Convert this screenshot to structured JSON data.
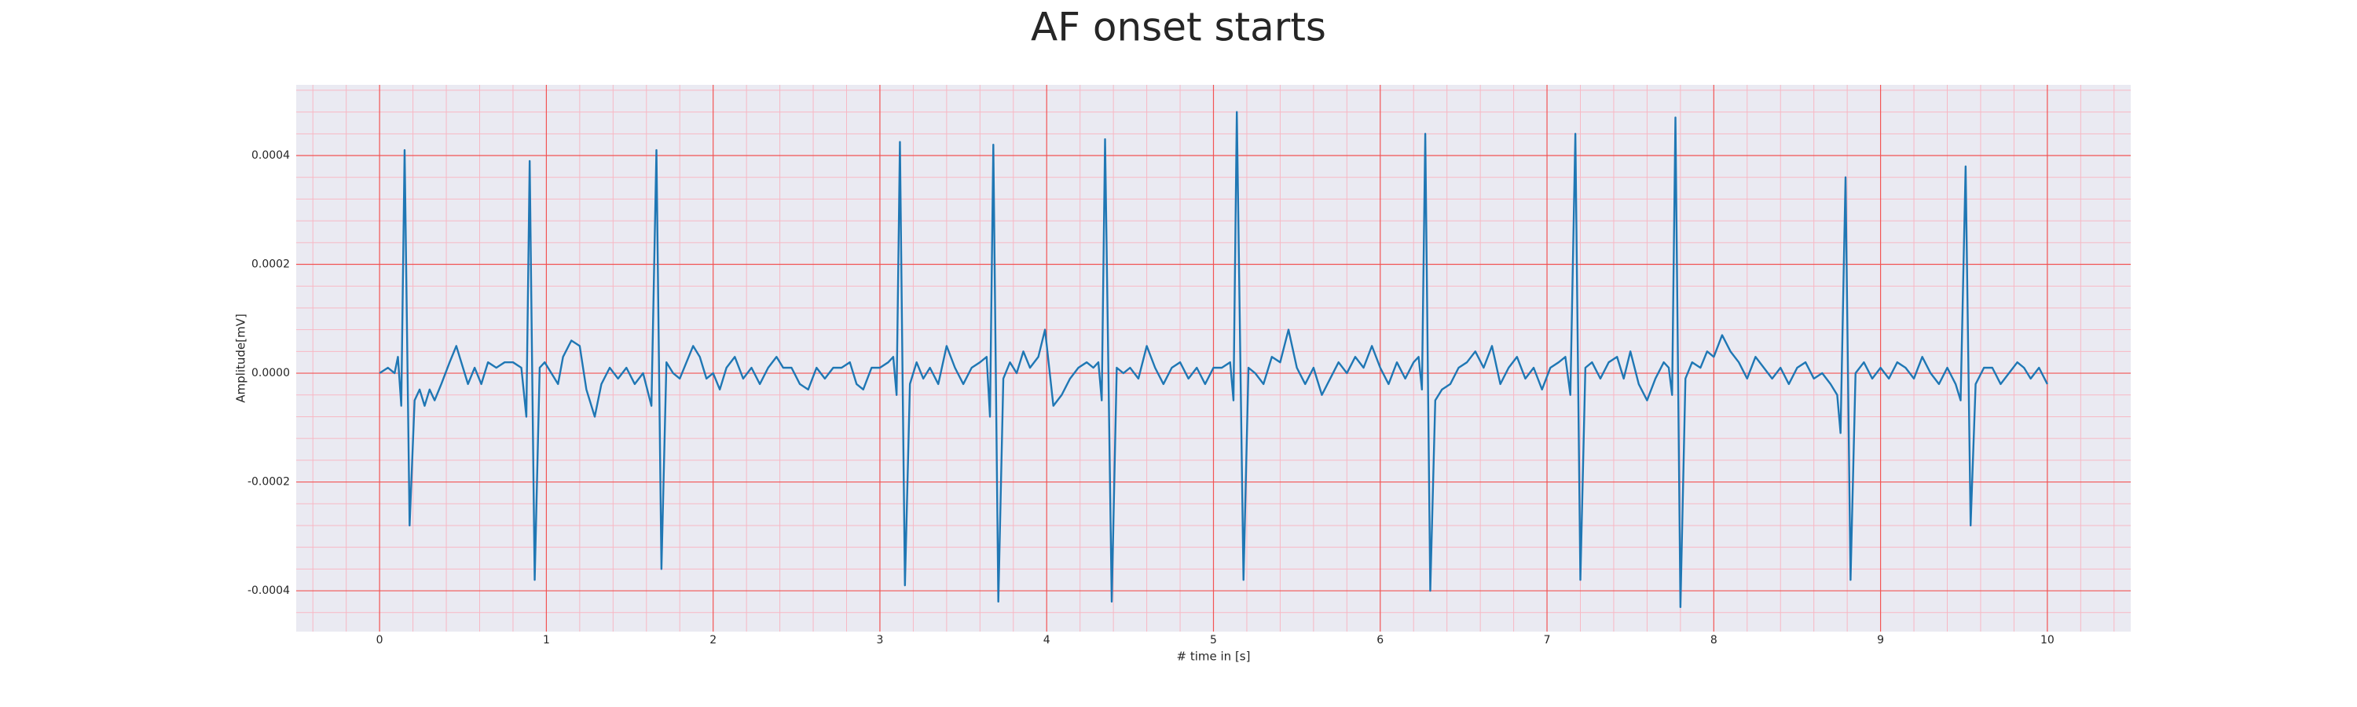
{
  "chart_data": {
    "type": "line",
    "title": "AF onset starts",
    "x_label": "# time in [s]",
    "y_label": "Amplitude[mV]",
    "color": "#1f77b4",
    "grid": true,
    "minor_grid": true,
    "xlim": [
      -0.5,
      10.5
    ],
    "xticks": [
      0,
      1,
      2,
      3,
      4,
      5,
      6,
      7,
      8,
      9,
      10
    ],
    "ylim": [
      -0.000475,
      0.00053
    ],
    "yticks": [
      -0.0004,
      -0.0002,
      {
        "value": 0,
        "label": "0.0000"
      },
      0.0002,
      0.0004
    ],
    "x": [
      0,
      0.05,
      0.09,
      0.11,
      0.13,
      0.15,
      0.18,
      0.21,
      0.24,
      0.27,
      0.3,
      0.33,
      0.37,
      0.42,
      0.46,
      0.5,
      0.53,
      0.57,
      0.61,
      0.65,
      0.7,
      0.75,
      0.8,
      0.85,
      0.88,
      0.9,
      0.93,
      0.96,
      0.99,
      1.03,
      1.07,
      1.1,
      1.15,
      1.2,
      1.24,
      1.29,
      1.33,
      1.38,
      1.43,
      1.48,
      1.53,
      1.58,
      1.63,
      1.66,
      1.69,
      1.72,
      1.76,
      1.8,
      1.84,
      1.88,
      1.92,
      1.96,
      2.0,
      2.04,
      2.08,
      2.13,
      2.18,
      2.23,
      2.28,
      2.33,
      2.38,
      2.42,
      2.47,
      2.52,
      2.57,
      2.62,
      2.67,
      2.72,
      2.77,
      2.82,
      2.86,
      2.9,
      2.95,
      3.0,
      3.05,
      3.08,
      3.1,
      3.12,
      3.15,
      3.18,
      3.22,
      3.26,
      3.3,
      3.35,
      3.4,
      3.45,
      3.5,
      3.55,
      3.6,
      3.64,
      3.66,
      3.68,
      3.71,
      3.74,
      3.78,
      3.82,
      3.86,
      3.9,
      3.95,
      3.99,
      4.04,
      4.09,
      4.14,
      4.19,
      4.24,
      4.28,
      4.31,
      4.33,
      4.35,
      4.39,
      4.42,
      4.46,
      4.5,
      4.55,
      4.6,
      4.65,
      4.7,
      4.75,
      4.8,
      4.85,
      4.9,
      4.95,
      5.0,
      5.05,
      5.1,
      5.12,
      5.14,
      5.18,
      5.21,
      5.25,
      5.3,
      5.35,
      5.4,
      5.45,
      5.5,
      5.55,
      5.6,
      5.65,
      5.7,
      5.75,
      5.8,
      5.85,
      5.9,
      5.95,
      6.0,
      6.05,
      6.1,
      6.15,
      6.2,
      6.23,
      6.25,
      6.27,
      6.3,
      6.33,
      6.37,
      6.42,
      6.47,
      6.52,
      6.57,
      6.62,
      6.67,
      6.72,
      6.77,
      6.82,
      6.87,
      6.92,
      6.97,
      7.02,
      7.07,
      7.11,
      7.14,
      7.17,
      7.2,
      7.23,
      7.27,
      7.32,
      7.37,
      7.42,
      7.46,
      7.5,
      7.55,
      7.6,
      7.65,
      7.7,
      7.73,
      7.75,
      7.77,
      7.8,
      7.83,
      7.87,
      7.92,
      7.96,
      8.0,
      8.05,
      8.1,
      8.15,
      8.2,
      8.25,
      8.3,
      8.35,
      8.4,
      8.45,
      8.5,
      8.55,
      8.6,
      8.65,
      8.7,
      8.74,
      8.76,
      8.79,
      8.82,
      8.85,
      8.9,
      8.95,
      9.0,
      9.05,
      9.1,
      9.15,
      9.2,
      9.25,
      9.3,
      9.35,
      9.4,
      9.45,
      9.48,
      9.51,
      9.54,
      9.57,
      9.62,
      9.67,
      9.72,
      9.77,
      9.82,
      9.86,
      9.9,
      9.95,
      10.0
    ],
    "values": [
      0,
      1e-05,
      0,
      3e-05,
      -6e-05,
      0.00041,
      -0.00028,
      -5e-05,
      -3e-05,
      -6e-05,
      -3e-05,
      -5e-05,
      -2e-05,
      2e-05,
      5e-05,
      1e-05,
      -2e-05,
      1e-05,
      -2e-05,
      2e-05,
      1e-05,
      2e-05,
      2e-05,
      1e-05,
      -8e-05,
      0.00039,
      -0.00038,
      1e-05,
      2e-05,
      0,
      -2e-05,
      3e-05,
      6e-05,
      5e-05,
      -3e-05,
      -8e-05,
      -2e-05,
      1e-05,
      -1e-05,
      1e-05,
      -2e-05,
      0,
      -6e-05,
      0.00041,
      -0.00036,
      2e-05,
      0,
      -1e-05,
      2e-05,
      5e-05,
      3e-05,
      -1e-05,
      0,
      -3e-05,
      1e-05,
      3e-05,
      -1e-05,
      1e-05,
      -2e-05,
      1e-05,
      3e-05,
      1e-05,
      1e-05,
      -2e-05,
      -3e-05,
      1e-05,
      -1e-05,
      1e-05,
      1e-05,
      2e-05,
      -2e-05,
      -3e-05,
      1e-05,
      1e-05,
      2e-05,
      3e-05,
      -4e-05,
      0.000425,
      -0.00039,
      -2e-05,
      2e-05,
      -1e-05,
      1e-05,
      -2e-05,
      5e-05,
      1e-05,
      -2e-05,
      1e-05,
      2e-05,
      3e-05,
      -8e-05,
      0.00042,
      -0.00042,
      -1e-05,
      2e-05,
      0,
      4e-05,
      1e-05,
      3e-05,
      8e-05,
      -6e-05,
      -4e-05,
      -1e-05,
      1e-05,
      2e-05,
      1e-05,
      2e-05,
      -5e-05,
      0.00043,
      -0.00042,
      1e-05,
      0,
      1e-05,
      -1e-05,
      5e-05,
      1e-05,
      -2e-05,
      1e-05,
      2e-05,
      -1e-05,
      1e-05,
      -2e-05,
      1e-05,
      1e-05,
      2e-05,
      -5e-05,
      0.00048,
      -0.00038,
      1e-05,
      0,
      -2e-05,
      3e-05,
      2e-05,
      8e-05,
      1e-05,
      -2e-05,
      1e-05,
      -4e-05,
      -1e-05,
      2e-05,
      0,
      3e-05,
      1e-05,
      5e-05,
      1e-05,
      -2e-05,
      2e-05,
      -1e-05,
      2e-05,
      3e-05,
      -3e-05,
      0.00044,
      -0.0004,
      -5e-05,
      -3e-05,
      -2e-05,
      1e-05,
      2e-05,
      4e-05,
      1e-05,
      5e-05,
      -2e-05,
      1e-05,
      3e-05,
      -1e-05,
      1e-05,
      -3e-05,
      1e-05,
      2e-05,
      3e-05,
      -4e-05,
      0.00044,
      -0.00038,
      1e-05,
      2e-05,
      -1e-05,
      2e-05,
      3e-05,
      -1e-05,
      4e-05,
      -2e-05,
      -5e-05,
      -1e-05,
      2e-05,
      1e-05,
      -4e-05,
      0.00047,
      -0.00043,
      -1e-05,
      2e-05,
      1e-05,
      4e-05,
      3e-05,
      7e-05,
      4e-05,
      2e-05,
      -1e-05,
      3e-05,
      1e-05,
      -1e-05,
      1e-05,
      -2e-05,
      1e-05,
      2e-05,
      -1e-05,
      0,
      -2e-05,
      -4e-05,
      -0.00011,
      0.00036,
      -0.00038,
      0,
      2e-05,
      -1e-05,
      1e-05,
      -1e-05,
      2e-05,
      1e-05,
      -1e-05,
      3e-05,
      0,
      -2e-05,
      1e-05,
      -2e-05,
      -5e-05,
      0.00038,
      -0.00028,
      -2e-05,
      1e-05,
      1e-05,
      -2e-05,
      0,
      2e-05,
      1e-05,
      -1e-05,
      1e-05,
      -2e-05
    ]
  }
}
